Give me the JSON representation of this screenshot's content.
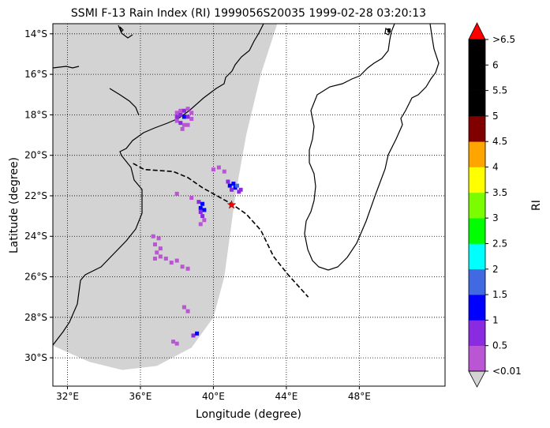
{
  "title": "SSMI F-13 Rain Index (RI) 1999056S20035 1999-02-28 03:20:13",
  "xlabel": "Longitude (degree)",
  "ylabel": "Latitude (degree)",
  "colorbar": {
    "label": "RI",
    "tick_labels": [
      "<0.01",
      "0.5",
      "1",
      "1.5",
      "2",
      "2.5",
      "3",
      "3.5",
      "4",
      "4.5",
      "5",
      "5.5",
      "6",
      ">6.5"
    ],
    "colors": [
      "#ba55d3",
      "#8a2be2",
      "#0000ff",
      "#4169e1",
      "#00ffff",
      "#00ff00",
      "#7cfc00",
      "#ffff00",
      "#ffa500",
      "#800000",
      "#000000",
      "#000000",
      "#000000"
    ],
    "over_color": "#ff0000",
    "under_color": "#d3d3d3"
  },
  "chart_data": {
    "type": "scatter",
    "projection": "plate-carree",
    "xlim": [
      31.2,
      52.7
    ],
    "ylim": [
      -31.4,
      -13.5
    ],
    "x_ticks": [
      32,
      36,
      40,
      44,
      48
    ],
    "x_tick_labels": [
      "32°E",
      "36°E",
      "40°E",
      "44°E",
      "48°E"
    ],
    "y_ticks": [
      -14,
      -16,
      -18,
      -20,
      -22,
      -24,
      -26,
      -28,
      -30
    ],
    "y_tick_labels": [
      "14°S",
      "16°S",
      "18°S",
      "20°S",
      "22°S",
      "24°S",
      "26°S",
      "28°S",
      "30°S"
    ],
    "grid": true,
    "swath": {
      "color": "#d3d3d3",
      "polygon": [
        [
          31.2,
          -13.5
        ],
        [
          43.5,
          -13.5
        ],
        [
          42.6,
          -16.0
        ],
        [
          41.8,
          -19.0
        ],
        [
          41.2,
          -22.0
        ],
        [
          40.9,
          -24.0
        ],
        [
          40.6,
          -26.0
        ],
        [
          40.0,
          -28.0
        ],
        [
          38.8,
          -29.5
        ],
        [
          36.9,
          -30.4
        ],
        [
          35.0,
          -30.6
        ],
        [
          33.2,
          -30.2
        ],
        [
          31.2,
          -29.4
        ]
      ]
    },
    "storm_track": {
      "style": "dashed",
      "lon": [
        35.6,
        36.2,
        37.0,
        37.8,
        38.6,
        39.4,
        40.2,
        41.0,
        41.8,
        42.6,
        43.3,
        44.1,
        45.2
      ],
      "lat": [
        -20.4,
        -20.7,
        -20.75,
        -20.8,
        -21.1,
        -21.6,
        -22.0,
        -22.4,
        -22.9,
        -23.7,
        -25.0,
        -25.9,
        -27.0
      ]
    },
    "storm_center": {
      "lon": 41.0,
      "lat": -22.45,
      "color": "#ff0000"
    },
    "rain_points": [
      {
        "lon": 38.0,
        "lat": -17.9,
        "ri": 0.3
      },
      {
        "lon": 38.2,
        "lat": -17.8,
        "ri": 0.3
      },
      {
        "lon": 38.4,
        "lat": -17.8,
        "ri": 0.6
      },
      {
        "lon": 38.6,
        "lat": -17.7,
        "ri": 0.3
      },
      {
        "lon": 38.8,
        "lat": -17.9,
        "ri": 0.3
      },
      {
        "lon": 38.0,
        "lat": -18.1,
        "ri": 0.6
      },
      {
        "lon": 38.2,
        "lat": -18.0,
        "ri": 0.8
      },
      {
        "lon": 38.4,
        "lat": -18.1,
        "ri": 1.2
      },
      {
        "lon": 38.6,
        "lat": -18.1,
        "ri": 0.8
      },
      {
        "lon": 38.8,
        "lat": -18.2,
        "ri": 0.3
      },
      {
        "lon": 38.0,
        "lat": -18.3,
        "ri": 0.3
      },
      {
        "lon": 38.2,
        "lat": -18.4,
        "ri": 0.6
      },
      {
        "lon": 38.4,
        "lat": -18.5,
        "ri": 0.3
      },
      {
        "lon": 38.6,
        "lat": -18.5,
        "ri": 0.3
      },
      {
        "lon": 38.3,
        "lat": -18.7,
        "ri": 0.3
      },
      {
        "lon": 40.0,
        "lat": -20.7,
        "ri": 0.3
      },
      {
        "lon": 40.3,
        "lat": -20.6,
        "ri": 0.3
      },
      {
        "lon": 40.6,
        "lat": -20.8,
        "ri": 0.3
      },
      {
        "lon": 40.8,
        "lat": -21.3,
        "ri": 0.8
      },
      {
        "lon": 40.9,
        "lat": -21.5,
        "ri": 1.2
      },
      {
        "lon": 41.1,
        "lat": -21.4,
        "ri": 1.2
      },
      {
        "lon": 41.2,
        "lat": -21.6,
        "ri": 1.2
      },
      {
        "lon": 41.3,
        "lat": -21.5,
        "ri": 1.7
      },
      {
        "lon": 41.4,
        "lat": -21.8,
        "ri": 0.8
      },
      {
        "lon": 41.5,
        "lat": -21.7,
        "ri": 0.6
      },
      {
        "lon": 41.0,
        "lat": -21.7,
        "ri": 0.8
      },
      {
        "lon": 38.0,
        "lat": -21.9,
        "ri": 0.3
      },
      {
        "lon": 38.8,
        "lat": -22.1,
        "ri": 0.3
      },
      {
        "lon": 39.2,
        "lat": -22.3,
        "ri": 0.6
      },
      {
        "lon": 39.4,
        "lat": -22.4,
        "ri": 1.2
      },
      {
        "lon": 39.3,
        "lat": -22.6,
        "ri": 1.2
      },
      {
        "lon": 39.5,
        "lat": -22.7,
        "ri": 1.2
      },
      {
        "lon": 39.3,
        "lat": -22.8,
        "ri": 0.8
      },
      {
        "lon": 39.4,
        "lat": -23.0,
        "ri": 0.6
      },
      {
        "lon": 39.5,
        "lat": -23.2,
        "ri": 0.3
      },
      {
        "lon": 39.3,
        "lat": -23.4,
        "ri": 0.3
      },
      {
        "lon": 36.7,
        "lat": -24.0,
        "ri": 0.3
      },
      {
        "lon": 37.0,
        "lat": -24.1,
        "ri": 0.3
      },
      {
        "lon": 36.8,
        "lat": -24.4,
        "ri": 0.3
      },
      {
        "lon": 37.1,
        "lat": -24.6,
        "ri": 0.3
      },
      {
        "lon": 36.9,
        "lat": -24.8,
        "ri": 0.3
      },
      {
        "lon": 36.8,
        "lat": -25.1,
        "ri": 0.3
      },
      {
        "lon": 37.1,
        "lat": -25.0,
        "ri": 0.3
      },
      {
        "lon": 37.4,
        "lat": -25.1,
        "ri": 0.3
      },
      {
        "lon": 37.7,
        "lat": -25.3,
        "ri": 0.3
      },
      {
        "lon": 38.0,
        "lat": -25.2,
        "ri": 0.3
      },
      {
        "lon": 38.3,
        "lat": -25.5,
        "ri": 0.3
      },
      {
        "lon": 38.6,
        "lat": -25.6,
        "ri": 0.3
      },
      {
        "lon": 38.4,
        "lat": -27.5,
        "ri": 0.3
      },
      {
        "lon": 38.6,
        "lat": -27.7,
        "ri": 0.3
      },
      {
        "lon": 38.9,
        "lat": -28.9,
        "ri": 0.6
      },
      {
        "lon": 39.1,
        "lat": -28.8,
        "ri": 1.2
      },
      {
        "lon": 37.8,
        "lat": -29.2,
        "ri": 0.3
      },
      {
        "lon": 38.0,
        "lat": -29.3,
        "ri": 0.3
      }
    ]
  }
}
